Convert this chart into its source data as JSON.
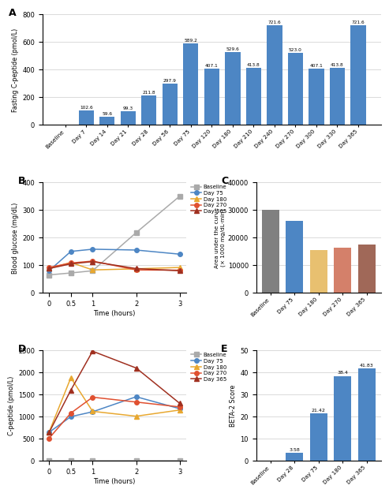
{
  "A": {
    "categories": [
      "Baseline",
      "Day 7",
      "Day 14",
      "Day 21",
      "Day 28",
      "Day 56",
      "Day 75",
      "Day 120",
      "Day 180",
      "Day 210",
      "Day 240",
      "Day 270",
      "Day 300",
      "Day 330",
      "Day 365"
    ],
    "values": [
      0,
      102.6,
      59.6,
      99.3,
      211.8,
      297.9,
      589.2,
      407.1,
      529.6,
      413.8,
      721.6,
      523.0,
      407.1,
      413.8,
      721.6
    ],
    "bar_color": "#4d86c4",
    "ylabel": "Fasting C-peptide (pmol/L)",
    "ylim": [
      0,
      800
    ],
    "yticks": [
      0,
      200,
      400,
      600,
      800
    ]
  },
  "B": {
    "time": [
      0,
      0.5,
      1,
      2,
      3
    ],
    "series_order": [
      "Baseline",
      "Day 75",
      "Day 180",
      "Day 270",
      "Day 365"
    ],
    "series": {
      "Baseline": {
        "values": [
          65,
          72,
          80,
          218,
          350
        ],
        "color": "#aaaaaa",
        "marker": "s",
        "ms": 4
      },
      "Day 75": {
        "values": [
          80,
          150,
          158,
          155,
          140
        ],
        "color": "#4d86c4",
        "marker": "o",
        "ms": 4
      },
      "Day 180": {
        "values": [
          88,
          110,
          83,
          87,
          92
        ],
        "color": "#e8a830",
        "marker": "^",
        "ms": 4
      },
      "Day 270": {
        "values": [
          92,
          108,
          115,
          83,
          82
        ],
        "color": "#e05030",
        "marker": "o",
        "ms": 4
      },
      "Day 365": {
        "values": [
          88,
          105,
          113,
          88,
          80
        ],
        "color": "#a03020",
        "marker": "^",
        "ms": 4
      }
    },
    "xlabel": "Time (hours)",
    "ylabel": "Blood glucose (mg/dL)",
    "ylim": [
      0,
      400
    ],
    "yticks": [
      0,
      100,
      200,
      300,
      400
    ],
    "xticks": [
      0,
      0.5,
      1,
      2,
      3
    ],
    "xticklabels": [
      "0",
      "0.5",
      "1",
      "2",
      "3"
    ]
  },
  "C": {
    "categories": [
      "Baseline",
      "Day 75",
      "Day 180",
      "Day 270",
      "Day 365"
    ],
    "values": [
      30000,
      26000,
      15500,
      16300,
      17500
    ],
    "bar_colors": [
      "#808080",
      "#4d86c4",
      "#e8c070",
      "#d4806a",
      "#a06858"
    ],
    "ylabel": "Area under the curve\n(× 1000 mg/dL·min)",
    "ylim": [
      0,
      40000
    ],
    "yticks": [
      0,
      10000,
      20000,
      30000,
      40000
    ],
    "yticklabels": [
      "0",
      "10000",
      "20000",
      "30000",
      "40000"
    ]
  },
  "D": {
    "time": [
      0,
      0.5,
      1,
      2,
      3
    ],
    "series_order": [
      "Baseline",
      "Day 75",
      "Day 180",
      "Day 270",
      "Day 365"
    ],
    "series": {
      "Baseline": {
        "values": [
          0,
          0,
          0,
          0,
          0
        ],
        "color": "#aaaaaa",
        "marker": "s",
        "ms": 4
      },
      "Day 75": {
        "values": [
          645,
          1000,
          1110,
          1450,
          1180
        ],
        "color": "#4d86c4",
        "marker": "o",
        "ms": 4
      },
      "Day 180": {
        "values": [
          650,
          1880,
          1120,
          1010,
          1150
        ],
        "color": "#e8a830",
        "marker": "^",
        "ms": 5
      },
      "Day 270": {
        "values": [
          510,
          1080,
          1440,
          1330,
          1220
        ],
        "color": "#e05030",
        "marker": "o",
        "ms": 4
      },
      "Day 365": {
        "values": [
          640,
          1600,
          2480,
          2100,
          1300
        ],
        "color": "#a03020",
        "marker": "^",
        "ms": 4
      }
    },
    "xlabel": "Time (hours)",
    "ylabel": "C-peptide (pmol/L)",
    "ylim": [
      0,
      2500
    ],
    "yticks": [
      0,
      500,
      1000,
      1500,
      2000,
      2500
    ],
    "xticks": [
      0,
      0.5,
      1,
      2,
      3
    ],
    "xticklabels": [
      "0",
      "0.5",
      "1",
      "2",
      "3"
    ]
  },
  "E": {
    "categories": [
      "Baseline",
      "Day 28",
      "Day 75",
      "Day 180",
      "Day 365"
    ],
    "values": [
      0,
      3.58,
      21.42,
      38.4,
      41.83
    ],
    "bar_color": "#4d86c4",
    "ylabel": "BETA-2 Score",
    "ylim": [
      0,
      50
    ],
    "yticks": [
      0,
      10,
      20,
      30,
      40,
      50
    ]
  }
}
